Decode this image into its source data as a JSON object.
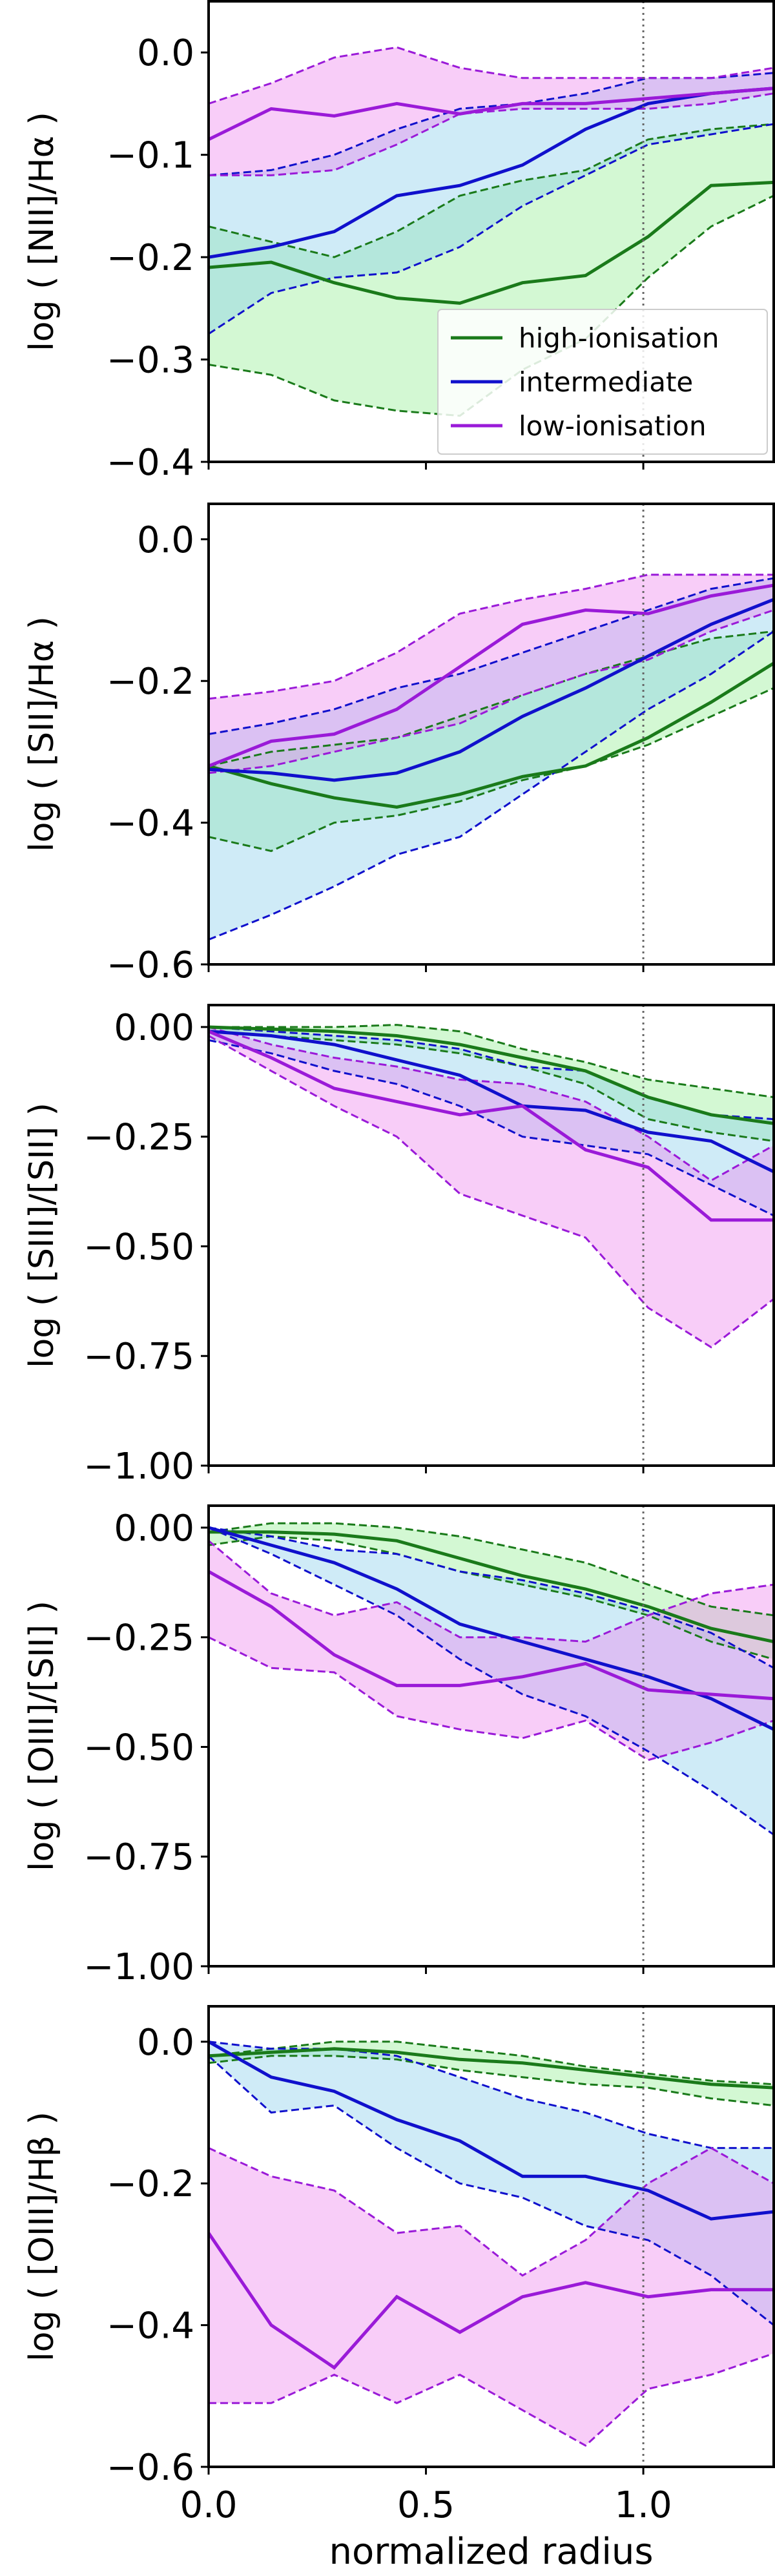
{
  "chart_data": [
    {
      "type": "band-line",
      "ylabel": "log ( [NII]/Hα )",
      "legend": "lower right",
      "vline": 1.0,
      "x": [
        0,
        0.144,
        0.289,
        0.433,
        0.578,
        0.722,
        0.867,
        1.011,
        1.156,
        1.3
      ],
      "xlim": [
        0,
        1.3
      ],
      "xticks": [
        0,
        0.5,
        1
      ],
      "ylim": [
        -0.4,
        0.05
      ],
      "yticks": [
        {
          "value": 0,
          "label": "0.0"
        },
        {
          "value": -0.1,
          "label": "−0.1"
        },
        {
          "value": -0.2,
          "label": "−0.2"
        },
        {
          "value": -0.3,
          "label": "−0.3"
        },
        {
          "value": -0.4,
          "label": "−0.4"
        }
      ],
      "series": [
        {
          "name": "high-ionisation",
          "color": "#1a7a1a",
          "fill": "#90ee90",
          "values": [
            -0.21,
            -0.205,
            -0.225,
            -0.24,
            -0.245,
            -0.225,
            -0.218,
            -0.18,
            -0.13,
            -0.127
          ],
          "lower": [
            -0.305,
            -0.315,
            -0.34,
            -0.35,
            -0.355,
            -0.31,
            -0.28,
            -0.22,
            -0.17,
            -0.14
          ],
          "upper": [
            -0.17,
            -0.185,
            -0.2,
            -0.175,
            -0.14,
            -0.125,
            -0.115,
            -0.085,
            -0.075,
            -0.07
          ]
        },
        {
          "name": "intermediate",
          "color": "#1010cc",
          "fill": "#87ceeb",
          "values": [
            -0.2,
            -0.19,
            -0.175,
            -0.14,
            -0.13,
            -0.11,
            -0.075,
            -0.05,
            -0.04,
            -0.035
          ],
          "lower": [
            -0.275,
            -0.235,
            -0.22,
            -0.215,
            -0.19,
            -0.15,
            -0.12,
            -0.09,
            -0.08,
            -0.07
          ],
          "upper": [
            -0.12,
            -0.115,
            -0.1,
            -0.075,
            -0.055,
            -0.05,
            -0.04,
            -0.025,
            -0.025,
            -0.02
          ]
        },
        {
          "name": "low-ionisation",
          "color": "#9a1ad8",
          "fill": "#ee82ee",
          "values": [
            -0.085,
            -0.055,
            -0.062,
            -0.05,
            -0.06,
            -0.05,
            -0.05,
            -0.045,
            -0.04,
            -0.035
          ],
          "lower": [
            -0.12,
            -0.12,
            -0.115,
            -0.09,
            -0.06,
            -0.055,
            -0.055,
            -0.055,
            -0.05,
            -0.04
          ],
          "upper": [
            -0.05,
            -0.03,
            -0.005,
            0.005,
            -0.015,
            -0.025,
            -0.025,
            -0.025,
            -0.025,
            -0.015
          ]
        }
      ]
    },
    {
      "type": "band-line",
      "ylabel": "log ( [SII]/Hα )",
      "vline": 1.0,
      "x": [
        0,
        0.144,
        0.289,
        0.433,
        0.578,
        0.722,
        0.867,
        1.011,
        1.156,
        1.3
      ],
      "xlim": [
        0,
        1.3
      ],
      "xticks": [
        0,
        0.5,
        1
      ],
      "ylim": [
        -0.6,
        0.05
      ],
      "yticks": [
        {
          "value": 0,
          "label": "0.0"
        },
        {
          "value": -0.2,
          "label": "−0.2"
        },
        {
          "value": -0.4,
          "label": "−0.4"
        },
        {
          "value": -0.6,
          "label": "−0.6"
        }
      ],
      "series": [
        {
          "color": "#1a7a1a",
          "fill": "#90ee90",
          "values": [
            -0.32,
            -0.345,
            -0.365,
            -0.378,
            -0.36,
            -0.335,
            -0.32,
            -0.28,
            -0.23,
            -0.175
          ],
          "lower": [
            -0.42,
            -0.44,
            -0.4,
            -0.39,
            -0.37,
            -0.34,
            -0.32,
            -0.29,
            -0.25,
            -0.21
          ],
          "upper": [
            -0.32,
            -0.3,
            -0.29,
            -0.28,
            -0.25,
            -0.22,
            -0.19,
            -0.165,
            -0.14,
            -0.13
          ]
        },
        {
          "color": "#1010cc",
          "fill": "#87ceeb",
          "values": [
            -0.325,
            -0.33,
            -0.34,
            -0.33,
            -0.3,
            -0.25,
            -0.21,
            -0.165,
            -0.12,
            -0.085
          ],
          "lower": [
            -0.565,
            -0.53,
            -0.49,
            -0.445,
            -0.42,
            -0.36,
            -0.3,
            -0.24,
            -0.19,
            -0.13
          ],
          "upper": [
            -0.275,
            -0.26,
            -0.24,
            -0.21,
            -0.19,
            -0.16,
            -0.13,
            -0.1,
            -0.07,
            -0.055
          ]
        },
        {
          "color": "#9a1ad8",
          "fill": "#ee82ee",
          "values": [
            -0.32,
            -0.285,
            -0.275,
            -0.24,
            -0.18,
            -0.12,
            -0.1,
            -0.105,
            -0.08,
            -0.065
          ],
          "lower": [
            -0.33,
            -0.32,
            -0.3,
            -0.28,
            -0.26,
            -0.22,
            -0.19,
            -0.17,
            -0.13,
            -0.1
          ],
          "upper": [
            -0.225,
            -0.215,
            -0.2,
            -0.16,
            -0.105,
            -0.085,
            -0.07,
            -0.05,
            -0.05,
            -0.05
          ]
        }
      ]
    },
    {
      "type": "band-line",
      "ylabel": "log ( [SIII]/[SII] )",
      "vline": 1.0,
      "x": [
        0,
        0.144,
        0.289,
        0.433,
        0.578,
        0.722,
        0.867,
        1.011,
        1.156,
        1.3
      ],
      "xlim": [
        0,
        1.3
      ],
      "xticks": [
        0,
        0.5,
        1
      ],
      "ylim": [
        -1.0,
        0.05
      ],
      "yticks": [
        {
          "value": 0,
          "label": "0.00"
        },
        {
          "value": -0.25,
          "label": "−0.25"
        },
        {
          "value": -0.5,
          "label": "−0.50"
        },
        {
          "value": -0.75,
          "label": "−0.75"
        },
        {
          "value": -1.0,
          "label": "−1.00"
        }
      ],
      "series": [
        {
          "color": "#1a7a1a",
          "fill": "#90ee90",
          "values": [
            0,
            -0.005,
            -0.01,
            -0.02,
            -0.04,
            -0.07,
            -0.1,
            -0.16,
            -0.2,
            -0.22
          ],
          "lower": [
            -0.01,
            -0.02,
            -0.03,
            -0.04,
            -0.06,
            -0.09,
            -0.13,
            -0.21,
            -0.24,
            -0.26
          ],
          "upper": [
            0,
            0,
            0,
            0.005,
            -0.01,
            -0.05,
            -0.08,
            -0.12,
            -0.14,
            -0.16
          ]
        },
        {
          "color": "#1010cc",
          "fill": "#87ceeb",
          "values": [
            -0.01,
            -0.02,
            -0.04,
            -0.075,
            -0.11,
            -0.18,
            -0.19,
            -0.24,
            -0.26,
            -0.33
          ],
          "lower": [
            -0.03,
            -0.06,
            -0.1,
            -0.13,
            -0.18,
            -0.25,
            -0.27,
            -0.29,
            -0.36,
            -0.43
          ],
          "upper": [
            0,
            -0.01,
            -0.02,
            -0.03,
            -0.05,
            -0.09,
            -0.1,
            -0.16,
            -0.2,
            -0.21
          ]
        },
        {
          "color": "#9a1ad8",
          "fill": "#ee82ee",
          "values": [
            -0.01,
            -0.07,
            -0.14,
            -0.17,
            -0.2,
            -0.18,
            -0.28,
            -0.32,
            -0.44,
            -0.44
          ],
          "lower": [
            -0.02,
            -0.1,
            -0.18,
            -0.25,
            -0.38,
            -0.43,
            -0.48,
            -0.64,
            -0.73,
            -0.62
          ],
          "upper": [
            0,
            -0.04,
            -0.07,
            -0.09,
            -0.12,
            -0.13,
            -0.17,
            -0.25,
            -0.35,
            -0.27
          ]
        }
      ]
    },
    {
      "type": "band-line",
      "ylabel": "log ( [OIII]/[SII] )",
      "vline": 1.0,
      "x": [
        0,
        0.144,
        0.289,
        0.433,
        0.578,
        0.722,
        0.867,
        1.011,
        1.156,
        1.3
      ],
      "xlim": [
        0,
        1.3
      ],
      "xticks": [
        0,
        0.5,
        1
      ],
      "ylim": [
        -1.0,
        0.05
      ],
      "yticks": [
        {
          "value": 0,
          "label": "0.00"
        },
        {
          "value": -0.25,
          "label": "−0.25"
        },
        {
          "value": -0.5,
          "label": "−0.50"
        },
        {
          "value": -0.75,
          "label": "−0.75"
        },
        {
          "value": -1.0,
          "label": "−1.00"
        }
      ],
      "series": [
        {
          "color": "#1a7a1a",
          "fill": "#90ee90",
          "values": [
            -0.01,
            -0.01,
            -0.015,
            -0.03,
            -0.07,
            -0.11,
            -0.14,
            -0.18,
            -0.23,
            -0.26
          ],
          "lower": [
            -0.04,
            -0.02,
            -0.03,
            -0.06,
            -0.1,
            -0.13,
            -0.16,
            -0.2,
            -0.26,
            -0.3
          ],
          "upper": [
            -0.01,
            0.01,
            0.01,
            0,
            -0.02,
            -0.05,
            -0.08,
            -0.13,
            -0.18,
            -0.2
          ]
        },
        {
          "color": "#1010cc",
          "fill": "#87ceeb",
          "values": [
            0,
            -0.04,
            -0.08,
            -0.14,
            -0.22,
            -0.26,
            -0.3,
            -0.34,
            -0.39,
            -0.46
          ],
          "lower": [
            0,
            -0.06,
            -0.13,
            -0.2,
            -0.3,
            -0.38,
            -0.43,
            -0.51,
            -0.6,
            -0.7
          ],
          "upper": [
            0,
            -0.02,
            -0.05,
            -0.06,
            -0.1,
            -0.12,
            -0.15,
            -0.19,
            -0.24,
            -0.32
          ]
        },
        {
          "color": "#9a1ad8",
          "fill": "#ee82ee",
          "values": [
            -0.1,
            -0.18,
            -0.29,
            -0.36,
            -0.36,
            -0.34,
            -0.31,
            -0.37,
            -0.38,
            -0.39
          ],
          "lower": [
            -0.25,
            -0.32,
            -0.33,
            -0.43,
            -0.46,
            -0.48,
            -0.44,
            -0.53,
            -0.49,
            -0.44
          ],
          "upper": [
            -0.03,
            -0.15,
            -0.2,
            -0.17,
            -0.25,
            -0.25,
            -0.26,
            -0.2,
            -0.15,
            -0.13
          ]
        }
      ]
    },
    {
      "type": "band-line",
      "ylabel": "log ( [OIII]/Hβ )",
      "xlabel": "normalized radius",
      "vline": 1.0,
      "x": [
        0,
        0.144,
        0.289,
        0.433,
        0.578,
        0.722,
        0.867,
        1.011,
        1.156,
        1.3
      ],
      "xlim": [
        0,
        1.3
      ],
      "xticks": [
        {
          "value": 0,
          "label": "0.0"
        },
        {
          "value": 0.5,
          "label": "0.5"
        },
        {
          "value": 1,
          "label": "1.0"
        }
      ],
      "ylim": [
        -0.6,
        0.05
      ],
      "yticks": [
        {
          "value": 0,
          "label": "0.0"
        },
        {
          "value": -0.2,
          "label": "−0.2"
        },
        {
          "value": -0.4,
          "label": "−0.4"
        },
        {
          "value": -0.6,
          "label": "−0.6"
        }
      ],
      "series": [
        {
          "color": "#1a7a1a",
          "fill": "#90ee90",
          "values": [
            -0.02,
            -0.015,
            -0.01,
            -0.015,
            -0.025,
            -0.03,
            -0.04,
            -0.05,
            -0.06,
            -0.065
          ],
          "lower": [
            -0.03,
            -0.02,
            -0.02,
            -0.025,
            -0.04,
            -0.05,
            -0.06,
            -0.065,
            -0.08,
            -0.09
          ],
          "upper": [
            -0.02,
            -0.01,
            0,
            0,
            -0.01,
            -0.02,
            -0.035,
            -0.045,
            -0.055,
            -0.06
          ]
        },
        {
          "color": "#1010cc",
          "fill": "#87ceeb",
          "values": [
            0,
            -0.05,
            -0.07,
            -0.11,
            -0.14,
            -0.19,
            -0.19,
            -0.21,
            -0.25,
            -0.24
          ],
          "lower": [
            -0.02,
            -0.1,
            -0.09,
            -0.15,
            -0.2,
            -0.22,
            -0.26,
            -0.28,
            -0.33,
            -0.4
          ],
          "upper": [
            0,
            -0.01,
            -0.01,
            -0.02,
            -0.05,
            -0.08,
            -0.1,
            -0.13,
            -0.15,
            -0.15
          ]
        },
        {
          "color": "#9a1ad8",
          "fill": "#ee82ee",
          "values": [
            -0.27,
            -0.4,
            -0.46,
            -0.36,
            -0.41,
            -0.36,
            -0.34,
            -0.36,
            -0.35,
            -0.35
          ],
          "lower": [
            -0.51,
            -0.51,
            -0.47,
            -0.51,
            -0.47,
            -0.52,
            -0.57,
            -0.49,
            -0.47,
            -0.44
          ],
          "upper": [
            -0.15,
            -0.19,
            -0.21,
            -0.27,
            -0.26,
            -0.33,
            -0.28,
            -0.2,
            -0.15,
            -0.2
          ]
        }
      ]
    }
  ]
}
